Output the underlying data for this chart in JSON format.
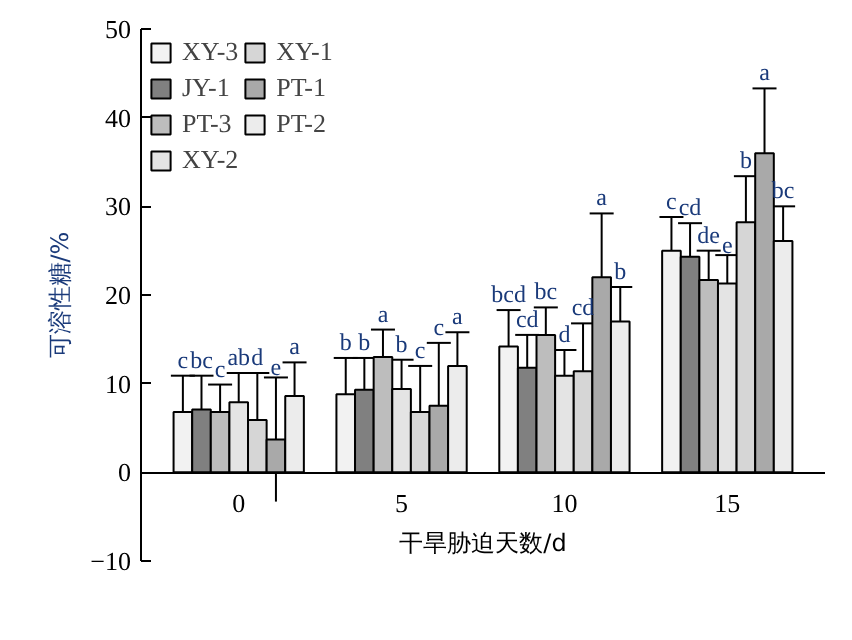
{
  "chart_data": {
    "type": "bar",
    "xlabel": "干旱胁迫天数/d",
    "ylabel": "可溶性糖/%",
    "categories": [
      "0",
      "5",
      "10",
      "15"
    ],
    "ylim": [
      -10,
      50
    ],
    "yticks": [
      -10,
      0,
      10,
      20,
      30,
      40,
      50
    ],
    "grid": false,
    "legend": "top left",
    "series": [
      {
        "name": "XY-3",
        "color": "#f2f2f2",
        "values": [
          6.8,
          8.8,
          14.2,
          25.0
        ],
        "errors": [
          4.1,
          4.1,
          4.1,
          3.8
        ],
        "value_labels": [
          "c",
          "b",
          "bcd",
          "c"
        ]
      },
      {
        "name": "JY-1",
        "color": "#808080",
        "values": [
          7.1,
          9.3,
          11.8,
          24.3
        ],
        "errors": [
          3.8,
          3.6,
          3.7,
          3.8
        ],
        "value_labels": [
          "bc",
          "b",
          "cd",
          "cd"
        ]
      },
      {
        "name": "PT-3",
        "color": "#bdbdbd",
        "values": [
          6.8,
          13.0,
          15.5,
          21.7
        ],
        "errors": [
          3.1,
          3.1,
          3.1,
          3.3
        ],
        "value_labels": [
          "c",
          "a",
          "bc",
          "de"
        ]
      },
      {
        "name": "XY-2",
        "color": "#e4e4e4",
        "values": [
          7.9,
          9.4,
          10.9,
          21.3
        ],
        "errors": [
          3.3,
          3.3,
          2.9,
          3.2
        ],
        "value_labels": [
          "ab",
          "b",
          "d",
          "e"
        ]
      },
      {
        "name": "XY-1",
        "color": "#d6d6d6",
        "values": [
          5.9,
          6.8,
          11.4,
          28.2
        ],
        "errors": [
          5.3,
          5.2,
          5.4,
          5.2
        ],
        "value_labels": [
          "d",
          "c",
          "cd",
          "b"
        ]
      },
      {
        "name": "PT-1",
        "color": "#a9a9a9",
        "values": [
          3.7,
          7.5,
          22.0,
          36.0
        ],
        "errors": [
          7.0,
          7.1,
          7.2,
          7.3
        ],
        "value_labels": [
          "e",
          "c",
          "a",
          "a"
        ]
      },
      {
        "name": "PT-2",
        "color": "#ececec",
        "values": [
          8.6,
          12.0,
          17.0,
          26.1
        ],
        "errors": [
          3.8,
          3.8,
          3.9,
          3.9
        ],
        "value_labels": [
          "a",
          "a",
          "b",
          "bc"
        ]
      }
    ]
  }
}
